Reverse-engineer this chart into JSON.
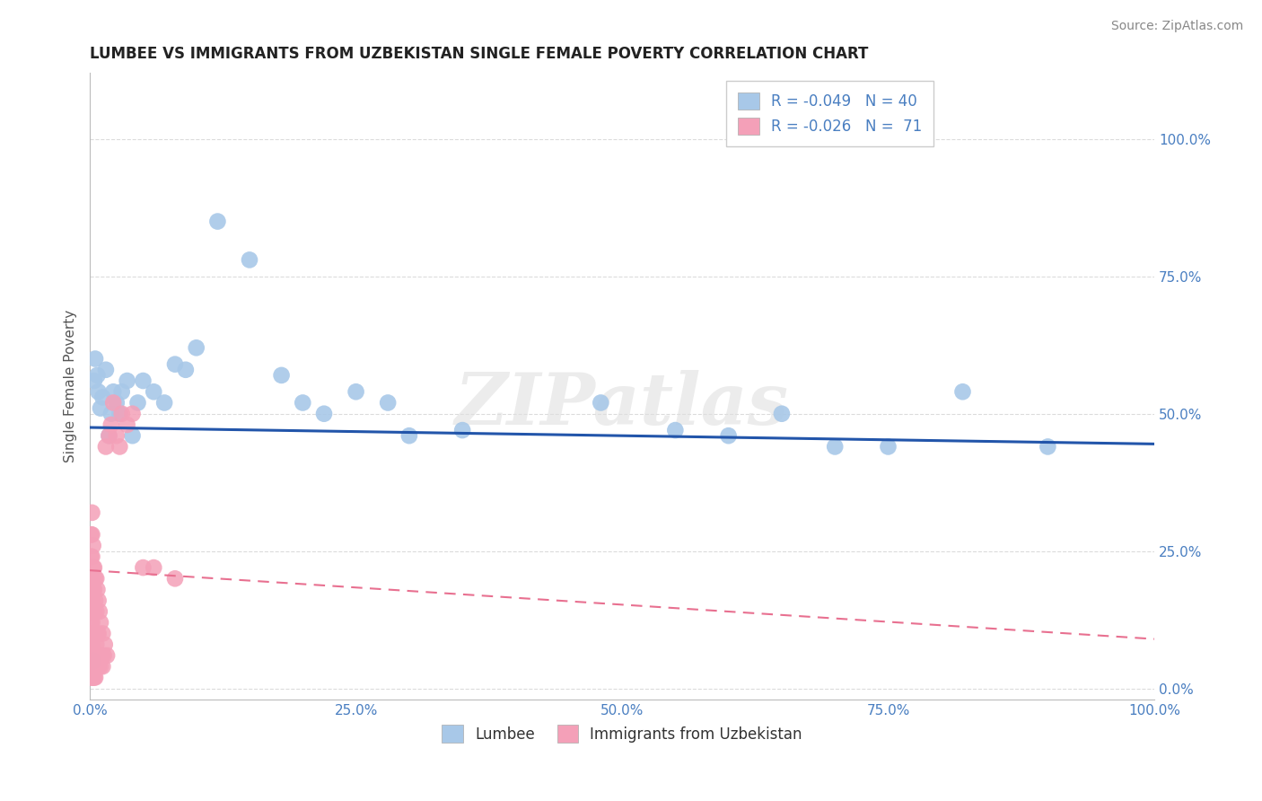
{
  "title": "LUMBEE VS IMMIGRANTS FROM UZBEKISTAN SINGLE FEMALE POVERTY CORRELATION CHART",
  "source": "Source: ZipAtlas.com",
  "ylabel": "Single Female Poverty",
  "watermark": "ZIPatlas",
  "lumbee_R": -0.049,
  "lumbee_N": 40,
  "uzbekistan_R": -0.026,
  "uzbekistan_N": 71,
  "lumbee_color": "#a8c8e8",
  "uzbekistan_color": "#f4a0b8",
  "lumbee_line_color": "#2255aa",
  "uzbekistan_line_color": "#e87090",
  "background_color": "#ffffff",
  "grid_color": "#cccccc",
  "xlim": [
    0.0,
    1.0
  ],
  "ylim": [
    -0.02,
    1.12
  ],
  "lumbee_x": [
    0.003,
    0.004,
    0.005,
    0.007,
    0.008,
    0.01,
    0.012,
    0.015,
    0.018,
    0.02,
    0.022,
    0.025,
    0.028,
    0.03,
    0.035,
    0.04,
    0.045,
    0.05,
    0.06,
    0.07,
    0.08,
    0.09,
    0.1,
    0.12,
    0.15,
    0.18,
    0.2,
    0.22,
    0.25,
    0.28,
    0.3,
    0.35,
    0.48,
    0.55,
    0.6,
    0.65,
    0.7,
    0.75,
    0.82,
    0.9
  ],
  "lumbee_y": [
    0.05,
    0.56,
    0.6,
    0.57,
    0.54,
    0.51,
    0.53,
    0.58,
    0.46,
    0.5,
    0.54,
    0.52,
    0.5,
    0.54,
    0.56,
    0.46,
    0.52,
    0.56,
    0.54,
    0.52,
    0.59,
    0.58,
    0.62,
    0.85,
    0.78,
    0.57,
    0.52,
    0.5,
    0.54,
    0.52,
    0.46,
    0.47,
    0.52,
    0.47,
    0.46,
    0.5,
    0.44,
    0.44,
    0.54,
    0.44
  ],
  "uzbekistan_x": [
    0.001,
    0.001,
    0.001,
    0.001,
    0.001,
    0.001,
    0.001,
    0.001,
    0.001,
    0.001,
    0.002,
    0.002,
    0.002,
    0.002,
    0.002,
    0.002,
    0.002,
    0.002,
    0.002,
    0.002,
    0.003,
    0.003,
    0.003,
    0.003,
    0.003,
    0.003,
    0.003,
    0.003,
    0.004,
    0.004,
    0.004,
    0.004,
    0.004,
    0.004,
    0.005,
    0.005,
    0.005,
    0.005,
    0.005,
    0.006,
    0.006,
    0.006,
    0.006,
    0.007,
    0.007,
    0.007,
    0.008,
    0.008,
    0.008,
    0.009,
    0.009,
    0.01,
    0.01,
    0.011,
    0.012,
    0.012,
    0.013,
    0.014,
    0.015,
    0.016,
    0.018,
    0.02,
    0.022,
    0.025,
    0.028,
    0.03,
    0.035,
    0.04,
    0.05,
    0.06,
    0.08
  ],
  "uzbekistan_y": [
    0.02,
    0.04,
    0.06,
    0.08,
    0.1,
    0.12,
    0.16,
    0.2,
    0.24,
    0.28,
    0.02,
    0.04,
    0.06,
    0.08,
    0.12,
    0.16,
    0.2,
    0.24,
    0.28,
    0.32,
    0.02,
    0.04,
    0.06,
    0.1,
    0.14,
    0.18,
    0.22,
    0.26,
    0.02,
    0.06,
    0.1,
    0.14,
    0.18,
    0.22,
    0.02,
    0.06,
    0.1,
    0.16,
    0.2,
    0.04,
    0.08,
    0.14,
    0.2,
    0.04,
    0.1,
    0.18,
    0.04,
    0.1,
    0.16,
    0.06,
    0.14,
    0.04,
    0.12,
    0.06,
    0.04,
    0.1,
    0.06,
    0.08,
    0.44,
    0.06,
    0.46,
    0.48,
    0.52,
    0.46,
    0.44,
    0.5,
    0.48,
    0.5,
    0.22,
    0.22,
    0.2
  ],
  "ytick_labels": [
    "0.0%",
    "25.0%",
    "50.0%",
    "75.0%",
    "100.0%"
  ],
  "ytick_values": [
    0.0,
    0.25,
    0.5,
    0.75,
    1.0
  ],
  "xtick_labels": [
    "0.0%",
    "25.0%",
    "50.0%",
    "75.0%",
    "100.0%"
  ],
  "xtick_values": [
    0.0,
    0.25,
    0.5,
    0.75,
    1.0
  ],
  "legend_labels": [
    "Lumbee",
    "Immigrants from Uzbekistan"
  ],
  "lumbee_trend_x0": 0.0,
  "lumbee_trend_y0": 0.475,
  "lumbee_trend_x1": 1.0,
  "lumbee_trend_y1": 0.445,
  "uzbekistan_trend_x0": 0.0,
  "uzbekistan_trend_y0": 0.215,
  "uzbekistan_trend_x1": 1.0,
  "uzbekistan_trend_y1": 0.09
}
